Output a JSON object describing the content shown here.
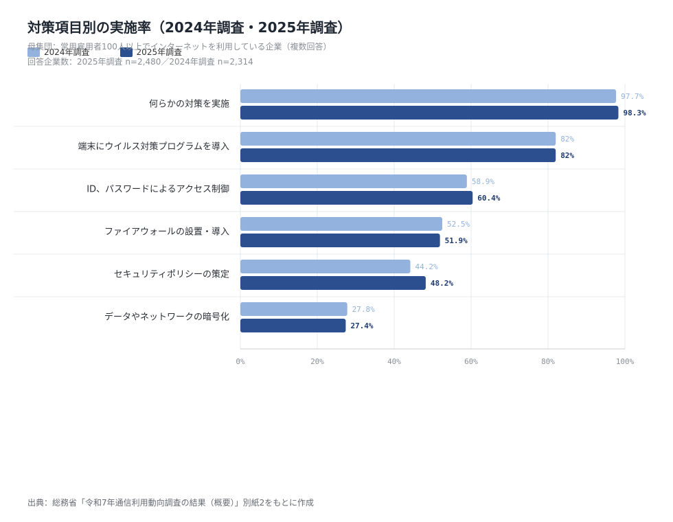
{
  "chart_data": {
    "type": "bar",
    "orientation": "horizontal",
    "title": "対策項目別の実施率（2024年調査・2025年調査）",
    "subtitle": "母集団：常用雇用者100人以上でインターネットを利用している企業（複数回答）",
    "subtitle2": "回答企業数：2025年調査 n=2,480／2024年調査 n=2,314",
    "source": "出典：総務省「令和7年通信利用動向調査の結果（概要）」別紙2をもとに作成",
    "categories": [
      "何らかの対策を実施",
      "端末にウイルス対策プログラムを導入",
      "ID、パスワードによるアクセス制御",
      "ファイアウォールの設置・導入",
      "セキュリティポリシーの策定",
      "データやネットワークの暗号化"
    ],
    "series": [
      {
        "name": "2024年調査",
        "values": [
          97.7,
          82,
          58.9,
          52.5,
          44.2,
          27.8
        ],
        "labels": [
          "97.7%",
          "82%",
          "58.9%",
          "52.5%",
          "44.2%",
          "27.8%"
        ],
        "color": "#93b2dd"
      },
      {
        "name": "2025年調査",
        "values": [
          98.3,
          82,
          60.4,
          51.9,
          48.2,
          27.4
        ],
        "labels": [
          "98.3%",
          "82%",
          "60.4%",
          "51.9%",
          "48.2%",
          "27.4%"
        ],
        "color": "#2b4f8f"
      }
    ],
    "xlim": [
      0,
      100
    ],
    "xticks": [
      "0%",
      "20%",
      "40%",
      "60%",
      "80%",
      "100%"
    ],
    "grid": true,
    "legend": "top-left"
  }
}
